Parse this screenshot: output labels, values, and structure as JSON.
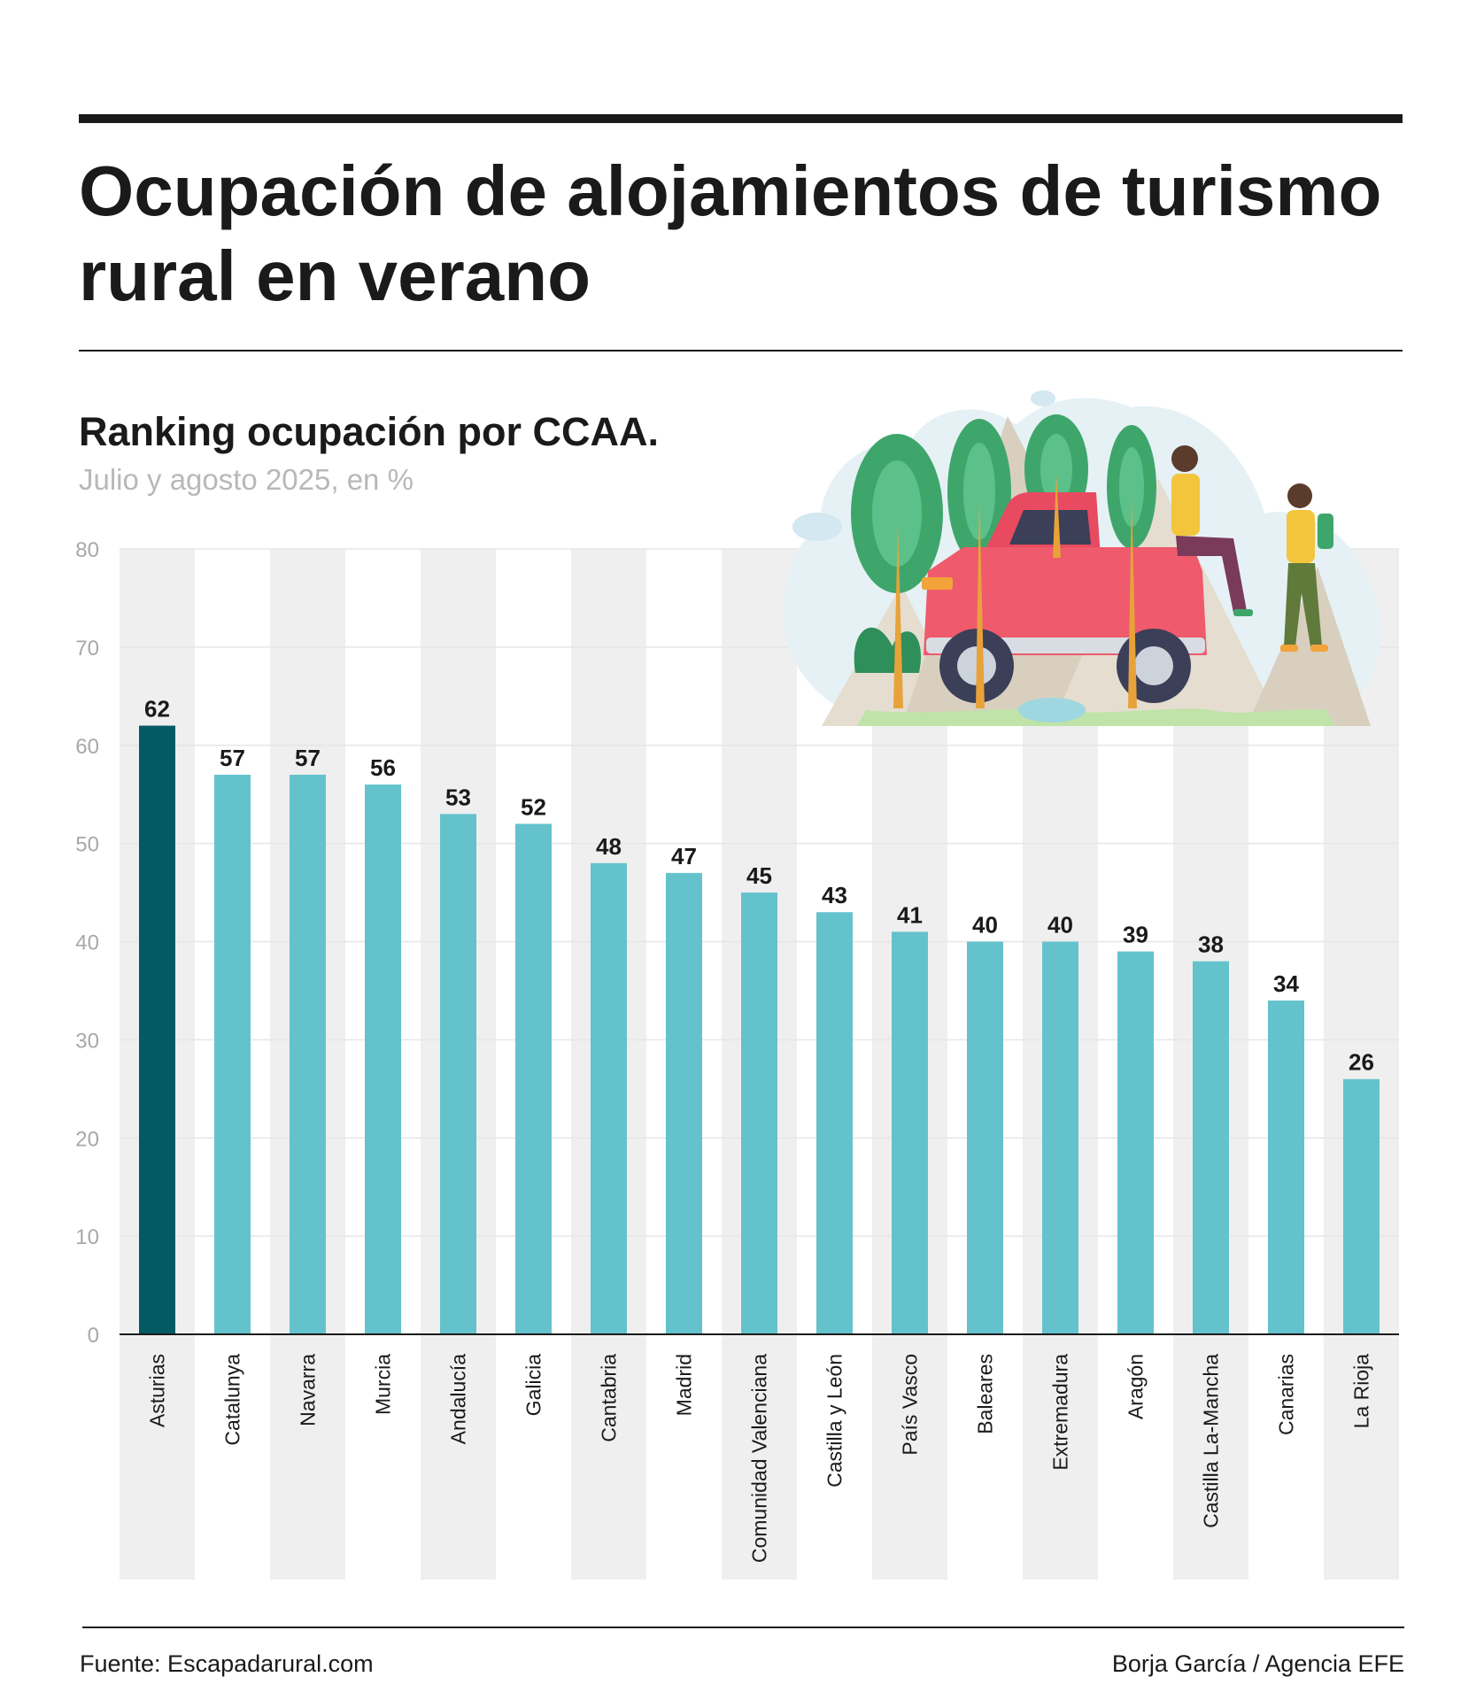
{
  "header": {
    "title": "Ocupación de alojamientos de turismo rural en verano"
  },
  "chart_data": {
    "type": "bar",
    "title": "Ranking ocupación por CCAA.",
    "subtitle": "Julio y agosto 2025, en %",
    "categories": [
      "Asturias",
      "Catalunya",
      "Navarra",
      "Murcia",
      "Andalucía",
      "Galicia",
      "Cantabria",
      "Madrid",
      "Comunidad Valenciana",
      "Castilla y León",
      "País Vasco",
      "Baleares",
      "Extremadura",
      "Aragón",
      "Castilla La-Mancha",
      "Canarias",
      "La Rioja"
    ],
    "values": [
      62,
      57,
      57,
      56,
      53,
      52,
      48,
      47,
      45,
      43,
      41,
      40,
      40,
      39,
      38,
      34,
      26
    ],
    "ylim": [
      0,
      80
    ],
    "yticks": [
      0,
      10,
      20,
      30,
      40,
      50,
      60,
      70,
      80
    ],
    "highlight_index": 0,
    "colors": {
      "highlight": "#045a64",
      "bar": "#64c2cc",
      "band": "#efefef",
      "grid": "#e6e6e6",
      "axis": "#1a1a1a",
      "tick": "#a8a8a8"
    },
    "data_labels": true,
    "grid": true,
    "legend": "none"
  },
  "illustration": {
    "name": "illustration-rural-trip",
    "colors": {
      "car": "#e84a5f",
      "tree": "#3fa66b",
      "mountain": "#d8cfc0",
      "sky": "#dceef6"
    }
  },
  "footer": {
    "source": "Fuente: Escapadarural.com",
    "credit": "Borja García / Agencia EFE"
  }
}
